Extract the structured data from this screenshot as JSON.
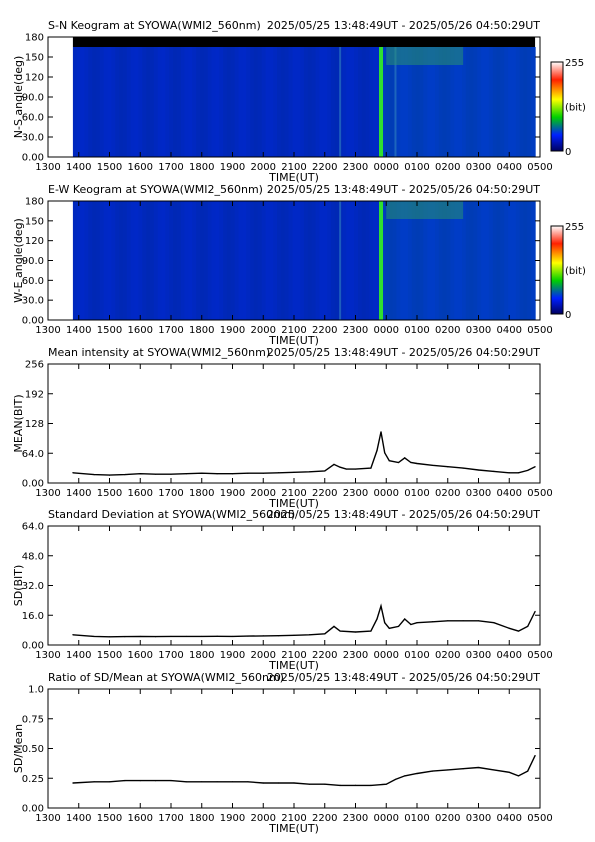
{
  "time_range_label": "2025/05/25 13:48:49UT - 2025/05/26 04:50:29UT",
  "x_ticks": [
    "1300",
    "1400",
    "1500",
    "1600",
    "1700",
    "1800",
    "1900",
    "2000",
    "2100",
    "2200",
    "2300",
    "0000",
    "0100",
    "0200",
    "0300",
    "0400",
    "0500"
  ],
  "xlabel": "TIME(UT)",
  "colorbar": {
    "max_label": "255",
    "min_label": "0",
    "unit_label": "(bit)"
  },
  "chart_data": [
    {
      "type": "heatmap",
      "title": "S-N Keogram at SYOWA(WMI2_560nm)",
      "ylabel": "N-S angle(deg)",
      "y_ticks": [
        "0.00",
        "30.0",
        "60.0",
        "90.0",
        "120",
        "150",
        "180"
      ],
      "ylim": [
        0,
        180
      ],
      "xlim": [
        13.0,
        29.0
      ],
      "data_start": 13.81,
      "data_end": 28.84,
      "zrange": [
        0,
        255
      ],
      "features": [
        {
          "time": 23.83,
          "intensity": 200,
          "label": "bright vertical band"
        },
        {
          "time": 22.5,
          "intensity": 110,
          "label": "weak band"
        },
        {
          "time": 24.3,
          "intensity": 120,
          "label": "weak band"
        }
      ]
    },
    {
      "type": "heatmap",
      "title": "E-W Keogram at SYOWA(WMI2_560nm)",
      "ylabel": "W-E angle(deg)",
      "y_ticks": [
        "0.00",
        "30.0",
        "60.0",
        "90.0",
        "120",
        "150",
        "180"
      ],
      "ylim": [
        0,
        180
      ],
      "xlim": [
        13.0,
        29.0
      ],
      "data_start": 13.81,
      "data_end": 28.84,
      "zrange": [
        0,
        255
      ],
      "features": [
        {
          "time": 23.83,
          "intensity": 200,
          "label": "bright vertical band"
        },
        {
          "time": 22.5,
          "intensity": 100,
          "label": "weak band"
        }
      ]
    },
    {
      "type": "line",
      "title": "Mean intensity at SYOWA(WMI2_560nm)",
      "ylabel": "MEAN(BIT)",
      "y_ticks": [
        "0.00",
        "64.0",
        "128",
        "192",
        "256"
      ],
      "ylim": [
        0,
        256
      ],
      "xlim": [
        13.0,
        29.0
      ],
      "x": [
        13.81,
        14.5,
        15.0,
        15.5,
        16.0,
        16.5,
        17.0,
        17.5,
        18.0,
        18.5,
        19.0,
        19.5,
        20.0,
        20.5,
        21.0,
        21.5,
        22.0,
        22.3,
        22.5,
        22.7,
        23.0,
        23.5,
        23.7,
        23.83,
        23.95,
        24.1,
        24.4,
        24.6,
        24.8,
        25.0,
        25.5,
        26.0,
        26.5,
        27.0,
        27.5,
        28.0,
        28.3,
        28.6,
        28.84
      ],
      "values": [
        22,
        18,
        17,
        18,
        20,
        19,
        19,
        20,
        21,
        20,
        20,
        21,
        21,
        22,
        23,
        24,
        26,
        40,
        34,
        30,
        30,
        32,
        70,
        110,
        65,
        48,
        44,
        54,
        44,
        42,
        38,
        35,
        32,
        28,
        25,
        22,
        22,
        27,
        35
      ]
    },
    {
      "type": "line",
      "title": "Standard Deviation at SYOWA(WMI2_560nm)",
      "ylabel": "SD(BIT)",
      "y_ticks": [
        "0.00",
        "16.0",
        "32.0",
        "48.0",
        "64.0"
      ],
      "ylim": [
        0,
        64
      ],
      "xlim": [
        13.0,
        29.0
      ],
      "x": [
        13.81,
        14.5,
        15.0,
        15.5,
        16.0,
        16.5,
        17.0,
        17.5,
        18.0,
        18.5,
        19.0,
        19.5,
        20.0,
        20.5,
        21.0,
        21.5,
        22.0,
        22.3,
        22.5,
        23.0,
        23.5,
        23.7,
        23.83,
        23.95,
        24.1,
        24.4,
        24.6,
        24.8,
        25.0,
        25.5,
        26.0,
        26.5,
        27.0,
        27.5,
        28.0,
        28.3,
        28.6,
        28.84
      ],
      "values": [
        5.5,
        4.6,
        4.4,
        4.5,
        4.6,
        4.5,
        4.6,
        4.6,
        4.6,
        4.7,
        4.6,
        4.8,
        4.9,
        5.0,
        5.2,
        5.5,
        6.0,
        10,
        7.5,
        7.0,
        7.5,
        14,
        21,
        12,
        9,
        10,
        14,
        11,
        12,
        12.5,
        13,
        13,
        13,
        12,
        9,
        7.5,
        10,
        18
      ]
    },
    {
      "type": "line",
      "title": "Ratio of SD/Mean at SYOWA(WMI2_560nm)",
      "ylabel": "SD/Mean",
      "y_ticks": [
        "0.00",
        "0.25",
        "0.50",
        "0.75",
        "1.0"
      ],
      "ylim": [
        0,
        1
      ],
      "xlim": [
        13.0,
        29.0
      ],
      "x": [
        13.81,
        14.5,
        15.0,
        15.5,
        16.0,
        16.5,
        17.0,
        17.5,
        18.0,
        18.5,
        19.0,
        19.5,
        20.0,
        20.5,
        21.0,
        21.5,
        22.0,
        22.5,
        23.0,
        23.5,
        24.0,
        24.3,
        24.6,
        25.0,
        25.5,
        26.0,
        26.5,
        27.0,
        27.5,
        28.0,
        28.3,
        28.6,
        28.84
      ],
      "values": [
        0.21,
        0.22,
        0.22,
        0.23,
        0.23,
        0.23,
        0.23,
        0.22,
        0.22,
        0.22,
        0.22,
        0.22,
        0.21,
        0.21,
        0.21,
        0.2,
        0.2,
        0.19,
        0.19,
        0.19,
        0.2,
        0.24,
        0.27,
        0.29,
        0.31,
        0.32,
        0.33,
        0.34,
        0.32,
        0.3,
        0.27,
        0.31,
        0.44
      ]
    }
  ]
}
